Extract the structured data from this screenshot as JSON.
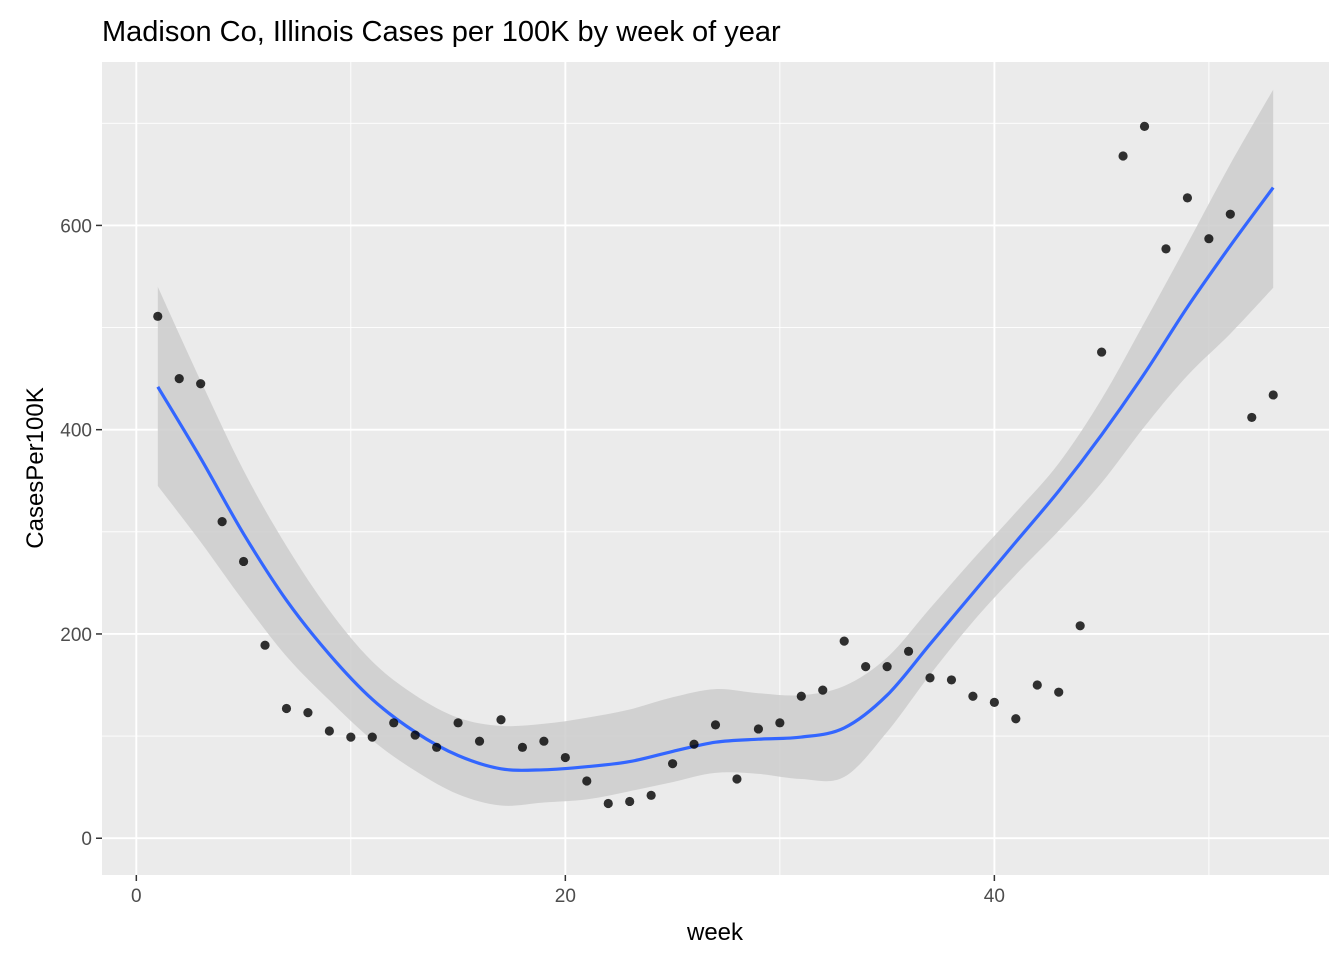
{
  "chart_data": {
    "type": "scatter",
    "title": "Madison Co, Illinois Cases per 100K by week of year",
    "xlabel": "week",
    "ylabel": "CasesPer100K",
    "xlim": [
      -1.6,
      55.6
    ],
    "ylim": [
      -36,
      760
    ],
    "x_ticks": [
      0,
      20,
      40
    ],
    "y_ticks": [
      0,
      200,
      400,
      600
    ],
    "x_tick_labels": [
      "0",
      "20",
      "40"
    ],
    "y_tick_labels": [
      "0",
      "200",
      "400",
      "600"
    ],
    "grid": true,
    "background_color": "#ebebeb",
    "grid_color": "#ffffff",
    "point_color": "#000000",
    "smooth_color": "#3366ff",
    "ribbon_color": "#cccccc",
    "points": {
      "x": [
        1,
        2,
        3,
        4,
        5,
        6,
        7,
        8,
        9,
        10,
        11,
        12,
        13,
        14,
        15,
        16,
        17,
        18,
        19,
        20,
        21,
        22,
        23,
        24,
        25,
        26,
        27,
        28,
        29,
        30,
        31,
        32,
        33,
        34,
        35,
        36,
        37,
        38,
        39,
        40,
        41,
        42,
        43,
        44,
        45,
        46,
        47,
        48,
        49,
        50,
        51,
        52,
        53
      ],
      "y": [
        511,
        450,
        445,
        310,
        271,
        189,
        127,
        123,
        105,
        99,
        99,
        113,
        101,
        89,
        113,
        95,
        116,
        89,
        95,
        79,
        56,
        34,
        36,
        42,
        73,
        92,
        111,
        58,
        107,
        113,
        139,
        145,
        193,
        168,
        168,
        183,
        157,
        155,
        139,
        133,
        117,
        150,
        143,
        208,
        476,
        668,
        697,
        577,
        627,
        587,
        611,
        412,
        434
      ]
    },
    "smooth": {
      "method": "loess",
      "x": [
        1,
        3,
        5,
        7,
        9,
        11,
        13,
        15,
        17,
        19,
        21,
        23,
        25,
        27,
        29,
        31,
        33,
        35,
        37,
        39,
        41,
        43,
        45,
        47,
        49,
        51,
        53
      ],
      "fit": [
        442,
        372,
        298,
        233,
        180,
        136,
        104,
        81,
        68,
        67,
        70,
        75,
        85,
        94,
        97,
        99,
        108,
        140,
        190,
        240,
        290,
        340,
        395,
        455,
        520,
        580,
        637
      ],
      "lower": [
        345,
        290,
        232,
        178,
        135,
        96,
        66,
        43,
        32,
        35,
        38,
        46,
        55,
        64,
        63,
        58,
        60,
        104,
        160,
        212,
        258,
        301,
        348,
        403,
        453,
        494,
        539
      ],
      "upper": [
        540,
        448,
        360,
        286,
        223,
        173,
        140,
        118,
        110,
        112,
        118,
        126,
        138,
        146,
        142,
        140,
        149,
        177,
        225,
        273,
        319,
        367,
        430,
        505,
        582,
        660,
        733
      ]
    }
  }
}
